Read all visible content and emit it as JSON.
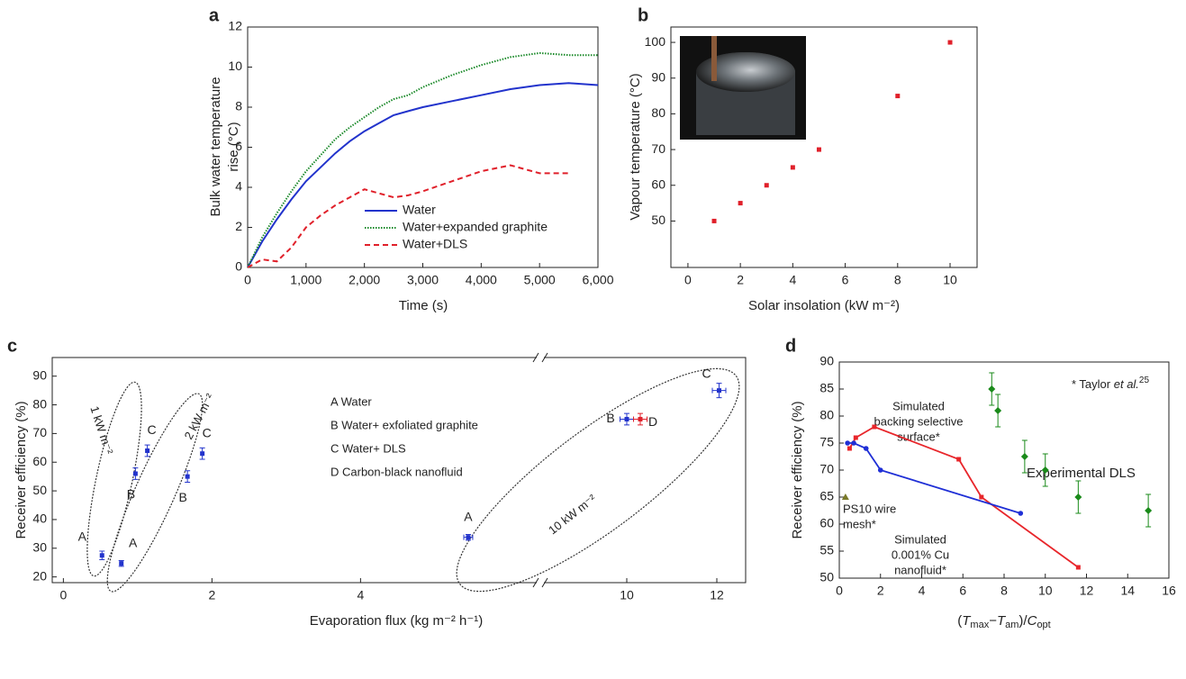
{
  "chart_data": [
    {
      "type": "line",
      "label": "a",
      "xlabel": "Time (s)",
      "ylabel": [
        "Bulk water temperature",
        "rise (°C)"
      ],
      "x": [
        0,
        250,
        500,
        750,
        1000,
        1250,
        1500,
        1750,
        2000,
        2250,
        2500,
        2750,
        3000,
        3500,
        4000,
        4500,
        5000,
        5500,
        6000
      ],
      "series": [
        {
          "name": "Water",
          "color": "#2233cc",
          "style": "solid",
          "values": [
            0,
            1.3,
            2.4,
            3.4,
            4.3,
            5.0,
            5.7,
            6.3,
            6.8,
            7.2,
            7.6,
            7.8,
            8.0,
            8.3,
            8.6,
            8.9,
            9.1,
            9.2,
            9.1
          ]
        },
        {
          "name": "Water+expanded graphite",
          "color": "#1b8a2a",
          "style": "dotted",
          "values": [
            0,
            1.5,
            2.7,
            3.8,
            4.8,
            5.6,
            6.4,
            7.0,
            7.5,
            8.0,
            8.4,
            8.6,
            9.0,
            9.6,
            10.1,
            10.5,
            10.7,
            10.6,
            10.6
          ]
        },
        {
          "name": "Water+DLS",
          "color": "#e0202a",
          "style": "dashed",
          "values": [
            0,
            0.4,
            0.3,
            1.0,
            2.0,
            2.6,
            3.1,
            3.5,
            3.9,
            3.7,
            3.5,
            3.6,
            3.8,
            4.3,
            4.8,
            5.1,
            4.7,
            4.7,
            null
          ]
        }
      ],
      "xlim": [
        0,
        6000
      ],
      "xticks": [
        0,
        {
          "value": 1000,
          "label": "1,000"
        },
        {
          "value": 2000,
          "label": "2,000"
        },
        {
          "value": 3000,
          "label": "3,000"
        },
        {
          "value": 4000,
          "label": "4,000"
        },
        {
          "value": 5000,
          "label": "5,000"
        },
        {
          "value": 6000,
          "label": "6,000"
        }
      ],
      "ylim": [
        0,
        12
      ],
      "yticks": [
        0,
        2,
        4,
        6,
        8,
        10,
        12
      ],
      "legend": "lower right"
    },
    {
      "type": "scatter",
      "label": "b",
      "xlabel": "Solar insolation (kW m⁻²)",
      "ylabel": "Vapour temperature (°C)",
      "series": [
        {
          "color": "#e0202a",
          "marker": "square",
          "style": "none",
          "x": [
            1,
            2,
            3,
            4,
            5,
            8,
            10
          ],
          "values": [
            50,
            55,
            60,
            65,
            70,
            85,
            100
          ]
        }
      ],
      "xlim": [
        -0.65,
        11.03
      ],
      "xticks": [
        0,
        2,
        4,
        6,
        8,
        10
      ],
      "ylim": [
        37,
        104.3
      ],
      "yticks": [
        50,
        60,
        70,
        80,
        90,
        100
      ]
    },
    {
      "type": "scatter",
      "label": "c",
      "xlabel": "Evaporation flux (kg m⁻² h⁻¹)",
      "ylabel": "Receiver efficiency (%)",
      "series": [
        {
          "color": "#2233cc",
          "marker": "square",
          "style": "none",
          "x": [
            0.52,
            0.78,
            0.97,
            1.67,
            1.13,
            1.87,
            5.45,
            10.0,
            12.05
          ],
          "values": [
            27.5,
            24.7,
            56,
            55,
            64,
            63,
            33.8,
            75,
            85
          ],
          "yerr": [
            1.5,
            1,
            2,
            2,
            2,
            2,
            1,
            2,
            2.5
          ],
          "xerr": [
            null,
            null,
            null,
            null,
            null,
            null,
            0.06,
            0.15,
            0.15
          ],
          "labels": [
            "A",
            "A",
            "B",
            "B",
            "C",
            "C",
            "A",
            "B",
            "C"
          ]
        },
        {
          "color": "#e0202a",
          "marker": "square",
          "style": "none",
          "x": [
            10.3
          ],
          "values": [
            75
          ],
          "yerr": [
            2
          ],
          "xerr": [
            0.15
          ],
          "labels": [
            "D"
          ]
        }
      ],
      "annotations": [
        "A Water",
        "B Water+ exfoliated graphite",
        "C Water+ DLS",
        "D Carbon-black nanofluid"
      ],
      "groups": [
        "1 kW m⁻²",
        "2 kW m⁻²",
        "10 kW m⁻²"
      ],
      "xlim": [
        -0.15,
        12.64
      ],
      "xbreak": [
        6.42,
        8.08
      ],
      "xticks": [
        0,
        2,
        4,
        10,
        12
      ],
      "ylim": [
        18,
        96.5
      ],
      "yticks": [
        20,
        30,
        40,
        50,
        60,
        70,
        80,
        90
      ]
    },
    {
      "type": "line",
      "label": "d",
      "xlabel": [
        "(",
        "T",
        "max",
        "−",
        "T",
        "am",
        ")/",
        "C",
        "opt"
      ],
      "ylabel": "Receiver efficiency (%)",
      "series": [
        {
          "color": "#e8262b",
          "marker": "square",
          "style": "solid",
          "x": [
            0.5,
            0.8,
            1.7,
            5.8,
            6.9,
            11.6
          ],
          "values": [
            74,
            76,
            78,
            72,
            65,
            52
          ]
        },
        {
          "color": "#1f2fd6",
          "marker": "circle",
          "style": "solid",
          "x": [
            0.4,
            0.7,
            1.3,
            2.0,
            8.8
          ],
          "values": [
            75,
            75,
            74,
            70,
            62
          ]
        },
        {
          "color": "#1a8a1a",
          "marker": "diamond",
          "style": "none",
          "x": [
            7.4,
            7.7,
            9.0,
            10.0,
            11.6,
            15.0
          ],
          "values": [
            85,
            81,
            72.5,
            70,
            65,
            62.5
          ],
          "yerr": [
            3,
            3,
            3,
            3,
            3,
            3
          ]
        },
        {
          "color": "#7a7a2a",
          "marker": "triangle",
          "style": "none",
          "x": [
            0.3
          ],
          "values": [
            65
          ]
        }
      ],
      "annotations": {
        "taylor": [
          "* Taylor ",
          "et al.",
          "25"
        ],
        "backing": [
          "Simulated",
          "backing selective",
          "surface*"
        ],
        "dls": "Experimental DLS",
        "mesh": [
          "PS10 wire",
          "mesh*"
        ],
        "cu": [
          "Simulated",
          "0.001% Cu",
          "nanofluid*"
        ]
      },
      "xlim": [
        0,
        16
      ],
      "xticks": [
        0,
        2,
        4,
        6,
        8,
        10,
        12,
        14,
        16
      ],
      "ylim": [
        50,
        90
      ],
      "yticks": [
        50,
        55,
        60,
        65,
        70,
        75,
        80,
        85,
        90
      ]
    }
  ]
}
